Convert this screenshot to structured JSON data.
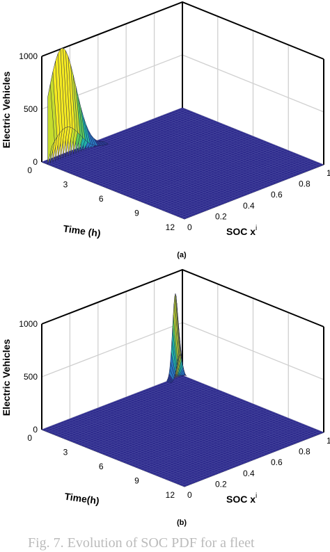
{
  "colors": {
    "surface_floor": "#2d2a8c",
    "mesh_line": "#4a4aa0",
    "grid_line": "#d0d0d0",
    "peak_colormap": [
      "#2b3a8f",
      "#2a78c0",
      "#22b0a8",
      "#5cc95a",
      "#c6dd2c",
      "#f5ea21"
    ]
  },
  "chart_data": [
    {
      "type": "surface3d",
      "panel_label": "(a)",
      "zlabel": "Electric Vehicles",
      "xlabel": "Time (h)",
      "ylabel_prefix": "SOC x",
      "ylabel_superscript": "i",
      "x_ticks": [
        "0",
        "3",
        "6",
        "9",
        "12"
      ],
      "y_ticks": [
        "0",
        "0.2",
        "0.4",
        "0.6",
        "0.8",
        "1"
      ],
      "z_ticks": [
        "0",
        "500",
        "1000"
      ],
      "xlim": [
        0,
        12
      ],
      "ylim": [
        0,
        1
      ],
      "zlim": [
        0,
        1000
      ],
      "grid": true,
      "floor_value": 0,
      "peak": {
        "time_h": 0.5,
        "soc_center": 0.1,
        "soc_spread": 0.1,
        "max_ev": 1050
      }
    },
    {
      "type": "surface3d",
      "panel_label": "(b)",
      "zlabel": "Electric Vehicles",
      "xlabel": "Time(h)",
      "ylabel_prefix": "SOC x",
      "ylabel_superscript": "i",
      "x_ticks": [
        "0",
        "3",
        "6",
        "9",
        "12"
      ],
      "y_ticks": [
        "0",
        "0.2",
        "0.4",
        "0.6",
        "0.8",
        "1"
      ],
      "z_ticks": [
        "0",
        "500",
        "1000"
      ],
      "xlim": [
        0,
        12
      ],
      "ylim": [
        0,
        1
      ],
      "zlim": [
        0,
        1000
      ],
      "grid": true,
      "floor_value": 0,
      "peak": {
        "time_h": 0,
        "soc_center": 0.95,
        "soc_spread": 0.02,
        "max_ev": 800
      }
    }
  ],
  "caption": "Fig. 7. Evolution of SOC PDF for a fleet"
}
